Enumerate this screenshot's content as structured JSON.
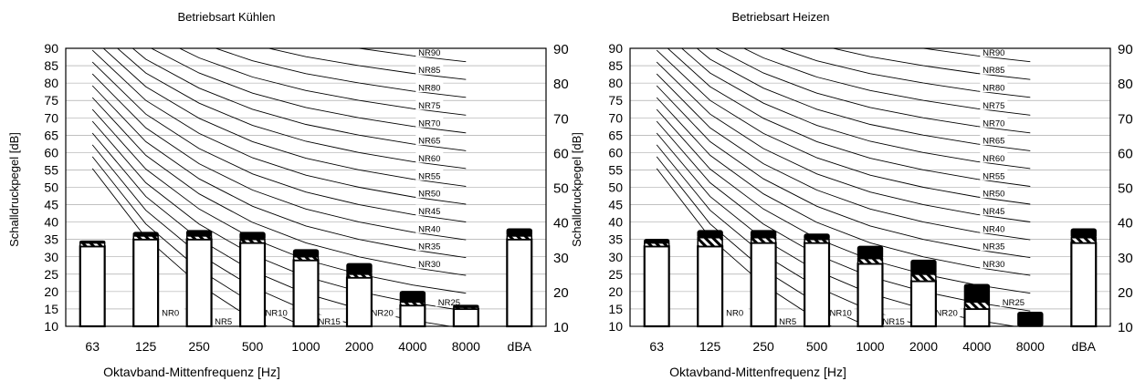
{
  "chart_data": [
    {
      "type": "bar",
      "title": "Betriebsart Kühlen",
      "xlabel": "Oktavband-Mittenfrequenz [Hz]",
      "ylabel": "Schalldruckpegel [dB]",
      "ylim": [
        10,
        90
      ],
      "yticks": [
        10,
        15,
        20,
        25,
        30,
        35,
        40,
        45,
        50,
        55,
        60,
        65,
        70,
        75,
        80,
        85,
        90
      ],
      "y2ticks": [
        10,
        20,
        30,
        40,
        50,
        60,
        70,
        80,
        90
      ],
      "grid": true,
      "categories": [
        "63",
        "125",
        "250",
        "500",
        "1000",
        "2000",
        "4000",
        "8000",
        "dBA"
      ],
      "series": [
        {
          "values": [
            33,
            35,
            35,
            34,
            29,
            24,
            16,
            15,
            35
          ]
        },
        {
          "values": [
            34,
            36,
            36,
            35,
            30,
            25,
            17,
            15.5,
            36
          ]
        },
        {
          "values": [
            34.5,
            37,
            37.5,
            37,
            32,
            28,
            20,
            16,
            38
          ]
        }
      ],
      "nr_curves": [
        "NR0",
        "NR5",
        "NR10",
        "NR15",
        "NR20",
        "NR25",
        "NR30",
        "NR35",
        "NR40",
        "NR45",
        "NR50",
        "NR55",
        "NR60",
        "NR65",
        "NR70",
        "NR75",
        "NR80",
        "NR85",
        "NR90"
      ]
    },
    {
      "type": "bar",
      "title": "Betriebsart Heizen",
      "xlabel": "Oktavband-Mittenfrequenz [Hz]",
      "ylabel": "Schalldruckpegel [dB]",
      "ylim": [
        10,
        90
      ],
      "yticks": [
        10,
        15,
        20,
        25,
        30,
        35,
        40,
        45,
        50,
        55,
        60,
        65,
        70,
        75,
        80,
        85,
        90
      ],
      "y2ticks": [
        10,
        20,
        30,
        40,
        50,
        60,
        70,
        80,
        90
      ],
      "grid": true,
      "categories": [
        "63",
        "125",
        "250",
        "500",
        "1000",
        "2000",
        "4000",
        "8000",
        "dBA"
      ],
      "series": [
        {
          "values": [
            33,
            33,
            34,
            34,
            28,
            23,
            15,
            10,
            34
          ]
        },
        {
          "values": [
            34,
            35.5,
            35.5,
            35,
            29.5,
            25,
            17,
            10,
            35.5
          ]
        },
        {
          "values": [
            35,
            37.5,
            37.5,
            36.5,
            33,
            29,
            22,
            14,
            38
          ]
        }
      ],
      "nr_curves": [
        "NR0",
        "NR5",
        "NR10",
        "NR15",
        "NR20",
        "NR25",
        "NR30",
        "NR35",
        "NR40",
        "NR45",
        "NR50",
        "NR55",
        "NR60",
        "NR65",
        "NR70",
        "NR75",
        "NR80",
        "NR85",
        "NR90"
      ]
    }
  ]
}
